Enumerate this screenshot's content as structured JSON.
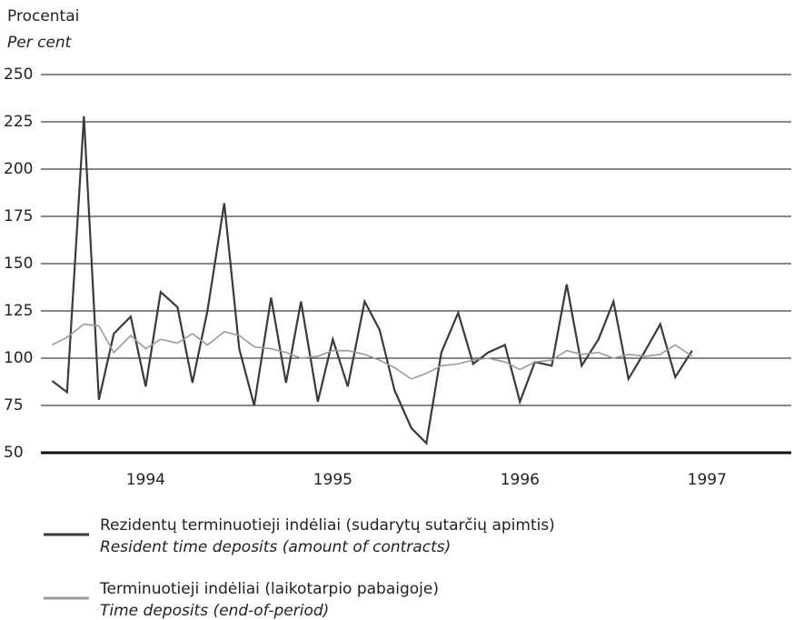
{
  "chart_data": {
    "type": "line",
    "ylabel": "Procentai",
    "ylabel_en": "Per cent",
    "x": [
      1994,
      1994.08,
      1994.17,
      1994.25,
      1994.33,
      1994.42,
      1994.5,
      1994.58,
      1994.67,
      1994.75,
      1994.83,
      1994.92,
      1995,
      1995.08,
      1995.17,
      1995.25,
      1995.33,
      1995.42,
      1995.5,
      1995.58,
      1995.67,
      1995.75,
      1995.83,
      1995.92,
      1996,
      1996.08,
      1996.17,
      1996.25,
      1996.33,
      1996.42,
      1996.5,
      1996.58,
      1996.67,
      1996.75,
      1996.83,
      1996.92,
      1997,
      1997.08,
      1997.17,
      1997.25,
      1997.33,
      1997.42
    ],
    "series": [
      {
        "name": "Rezidentų terminuotieji indėliai (sudarytų sutarčių apimtis)",
        "name_en": "Resident time deposits (amount of contracts)",
        "color": "#3a3a3a",
        "values": [
          88,
          82,
          228,
          78,
          113,
          122,
          85,
          135,
          127,
          87,
          125,
          182,
          105,
          75,
          132,
          87,
          130,
          77,
          110,
          85,
          130,
          115,
          83,
          63,
          55,
          103,
          124,
          97,
          103,
          107,
          77,
          98,
          96,
          139,
          96,
          110,
          130,
          89,
          104,
          118,
          90,
          104
        ]
      },
      {
        "name": "Terminuotieji indėliai (laikotarpio pabaigoje)",
        "name_en": "Time deposits (end-of-period)",
        "color": "#9a9a9a",
        "values": [
          107,
          111,
          118,
          117,
          103,
          112,
          105,
          110,
          108,
          113,
          107,
          114,
          112,
          106,
          105,
          103,
          100,
          101,
          104,
          104,
          102,
          99,
          95,
          89,
          92,
          96,
          97,
          99,
          100,
          98,
          94,
          98,
          99,
          104,
          102,
          103,
          100,
          102,
          101,
          102,
          107,
          101
        ]
      }
    ],
    "xlim": [
      1993.94,
      1997.95
    ],
    "xticks": [
      {
        "value": 1994.5,
        "label": "1994"
      },
      {
        "value": 1995.5,
        "label": "1995"
      },
      {
        "value": 1996.5,
        "label": "1996"
      },
      {
        "value": 1997.5,
        "label": "1997"
      }
    ],
    "ylim": [
      50,
      250
    ],
    "yticks": [
      50,
      75,
      100,
      125,
      150,
      175,
      200,
      225,
      250
    ],
    "grid": true
  }
}
